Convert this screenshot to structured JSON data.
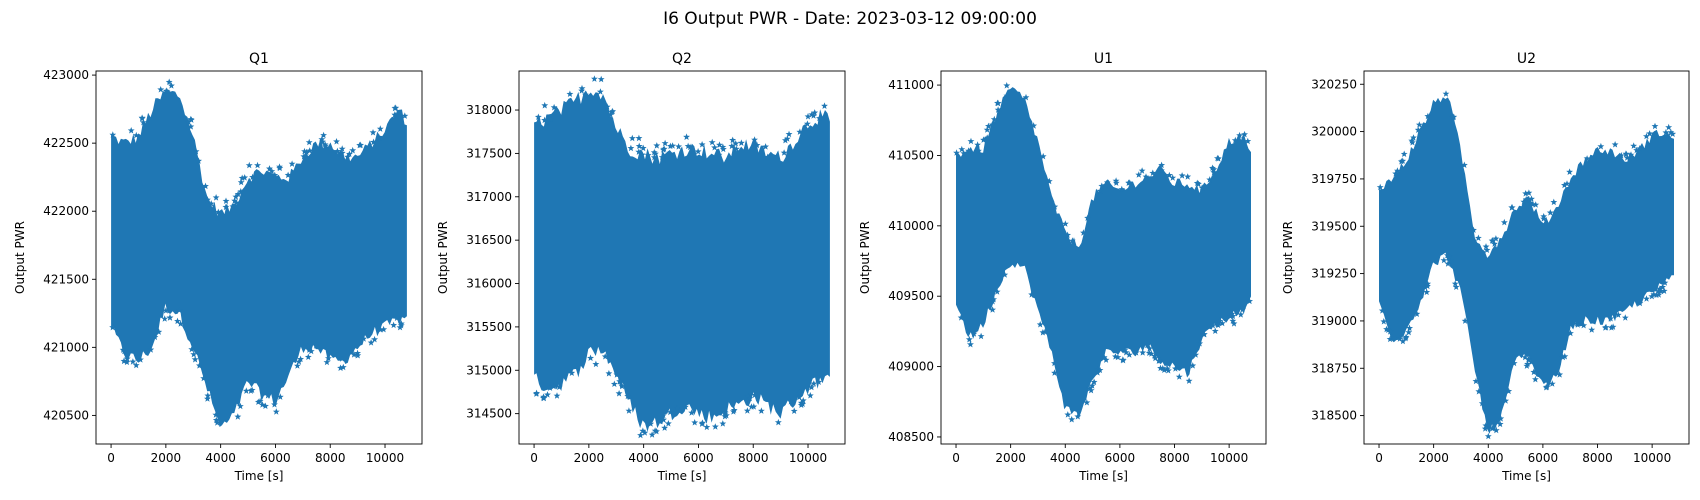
{
  "figure": {
    "suptitle": "I6 Output PWR - Date: 2023-03-12 09:00:00"
  },
  "chart_data": [
    {
      "type": "scatter",
      "title": "Q1",
      "xlabel": "Time [s]",
      "ylabel": "Output PWR",
      "marker": "star",
      "color": "#1f77b4",
      "xlim": [
        -550,
        11350
      ],
      "ylim": [
        420290,
        423030
      ],
      "xticks": [
        0,
        2000,
        4000,
        6000,
        8000,
        10000
      ],
      "xtick_labels": [
        "0",
        "2000",
        "4000",
        "6000",
        "8000",
        "10000"
      ],
      "yticks": [
        420500,
        421000,
        421500,
        422000,
        422500,
        423000
      ],
      "ytick_labels": [
        "420500",
        "421000",
        "421500",
        "422000",
        "422500",
        "423000"
      ],
      "envelope": {
        "x": [
          0,
          500,
          1000,
          1500,
          2000,
          2500,
          3000,
          3500,
          4000,
          4500,
          5000,
          5500,
          6000,
          6500,
          7000,
          7500,
          8000,
          8500,
          9000,
          9500,
          10000,
          10500,
          10800
        ],
        "upper": [
          422550,
          422500,
          422550,
          422750,
          422880,
          422850,
          422550,
          422100,
          421980,
          422050,
          422250,
          422300,
          422250,
          422250,
          422400,
          422500,
          422500,
          422400,
          422400,
          422500,
          422600,
          422750,
          422650
        ],
        "lower": [
          421150,
          420950,
          420900,
          421000,
          421300,
          421250,
          421000,
          420700,
          420400,
          420500,
          420750,
          420650,
          420600,
          420800,
          421000,
          421000,
          420900,
          420900,
          421000,
          421100,
          421150,
          421200,
          421200
        ]
      }
    },
    {
      "type": "scatter",
      "title": "Q2",
      "xlabel": "Time [s]",
      "ylabel": "Output PWR",
      "marker": "star",
      "color": "#1f77b4",
      "xlim": [
        -550,
        11350
      ],
      "ylim": [
        314150,
        318450
      ],
      "xticks": [
        0,
        2000,
        4000,
        6000,
        8000,
        10000
      ],
      "xtick_labels": [
        "0",
        "2000",
        "4000",
        "6000",
        "8000",
        "10000"
      ],
      "yticks": [
        314500,
        315000,
        315500,
        316000,
        316500,
        317000,
        317500,
        318000
      ],
      "ytick_labels": [
        "314500",
        "315000",
        "315500",
        "316000",
        "316500",
        "317000",
        "317500",
        "318000"
      ],
      "envelope": {
        "x": [
          0,
          500,
          1000,
          1500,
          2000,
          2500,
          3000,
          3500,
          4000,
          4500,
          5000,
          5500,
          6000,
          6500,
          7000,
          7500,
          8000,
          8500,
          9000,
          9500,
          10000,
          10500,
          10800
        ],
        "upper": [
          317850,
          317900,
          318000,
          318100,
          318250,
          318200,
          317800,
          317550,
          317500,
          317450,
          317500,
          317550,
          317550,
          317500,
          317450,
          317600,
          317600,
          317500,
          317450,
          317650,
          317850,
          317950,
          317850
        ],
        "lower": [
          314900,
          314800,
          314850,
          314950,
          315200,
          315250,
          314950,
          314600,
          314350,
          314400,
          314500,
          314600,
          314500,
          314450,
          314550,
          314600,
          314700,
          314600,
          314500,
          314650,
          314800,
          314900,
          314850
        ]
      }
    },
    {
      "type": "scatter",
      "title": "U1",
      "xlabel": "Time [s]",
      "ylabel": "Output PWR",
      "marker": "star",
      "color": "#1f77b4",
      "xlim": [
        -550,
        11350
      ],
      "ylim": [
        408450,
        411100
      ],
      "xticks": [
        0,
        2000,
        4000,
        6000,
        8000,
        10000
      ],
      "xtick_labels": [
        "0",
        "2000",
        "4000",
        "6000",
        "8000",
        "10000"
      ],
      "yticks": [
        408500,
        409000,
        409500,
        410000,
        410500,
        411000
      ],
      "ytick_labels": [
        "408500",
        "409000",
        "409500",
        "410000",
        "410500",
        "411000"
      ],
      "envelope": {
        "x": [
          0,
          500,
          1000,
          1500,
          2000,
          2500,
          3000,
          3500,
          4000,
          4500,
          5000,
          5500,
          6000,
          6500,
          7000,
          7500,
          8000,
          8500,
          9000,
          9500,
          10000,
          10500,
          10800
        ],
        "upper": [
          410500,
          410550,
          410550,
          410800,
          410980,
          410900,
          410600,
          410200,
          409950,
          409850,
          410200,
          410300,
          410250,
          410300,
          410350,
          410400,
          410300,
          410300,
          410250,
          410400,
          410600,
          410650,
          410500
        ],
        "lower": [
          409450,
          409200,
          409300,
          409550,
          409750,
          409700,
          409400,
          409100,
          408700,
          408650,
          408900,
          409100,
          409100,
          409100,
          409150,
          409050,
          409000,
          408950,
          409200,
          409300,
          409350,
          409400,
          409500
        ]
      }
    },
    {
      "type": "scatter",
      "title": "U2",
      "xlabel": "Time [s]",
      "ylabel": "Output PWR",
      "marker": "star",
      "color": "#1f77b4",
      "xlim": [
        -550,
        11350
      ],
      "ylim": [
        318350,
        320320
      ],
      "xticks": [
        0,
        2000,
        4000,
        6000,
        8000,
        10000
      ],
      "xtick_labels": [
        "0",
        "2000",
        "4000",
        "6000",
        "8000",
        "10000"
      ],
      "yticks": [
        318500,
        318750,
        319000,
        319250,
        319500,
        319750,
        320000,
        320250
      ],
      "ytick_labels": [
        "318500",
        "318750",
        "319000",
        "319250",
        "319500",
        "319750",
        "320000",
        "320250"
      ],
      "envelope": {
        "x": [
          0,
          500,
          1000,
          1500,
          2000,
          2500,
          3000,
          3500,
          4000,
          4500,
          5000,
          5500,
          6000,
          6500,
          7000,
          7500,
          8000,
          8500,
          9000,
          9500,
          10000,
          10500,
          10800
        ],
        "upper": [
          319700,
          319750,
          319850,
          320000,
          320150,
          320200,
          319900,
          319450,
          319350,
          319450,
          319600,
          319650,
          319500,
          319600,
          319750,
          319850,
          319900,
          319900,
          319850,
          319900,
          319980,
          320000,
          319950
        ],
        "lower": [
          319100,
          318900,
          318950,
          319100,
          319300,
          319350,
          319150,
          318750,
          318400,
          318500,
          318800,
          318800,
          318650,
          318700,
          318950,
          319000,
          319000,
          319000,
          319050,
          319100,
          319150,
          319200,
          319250
        ]
      }
    }
  ]
}
